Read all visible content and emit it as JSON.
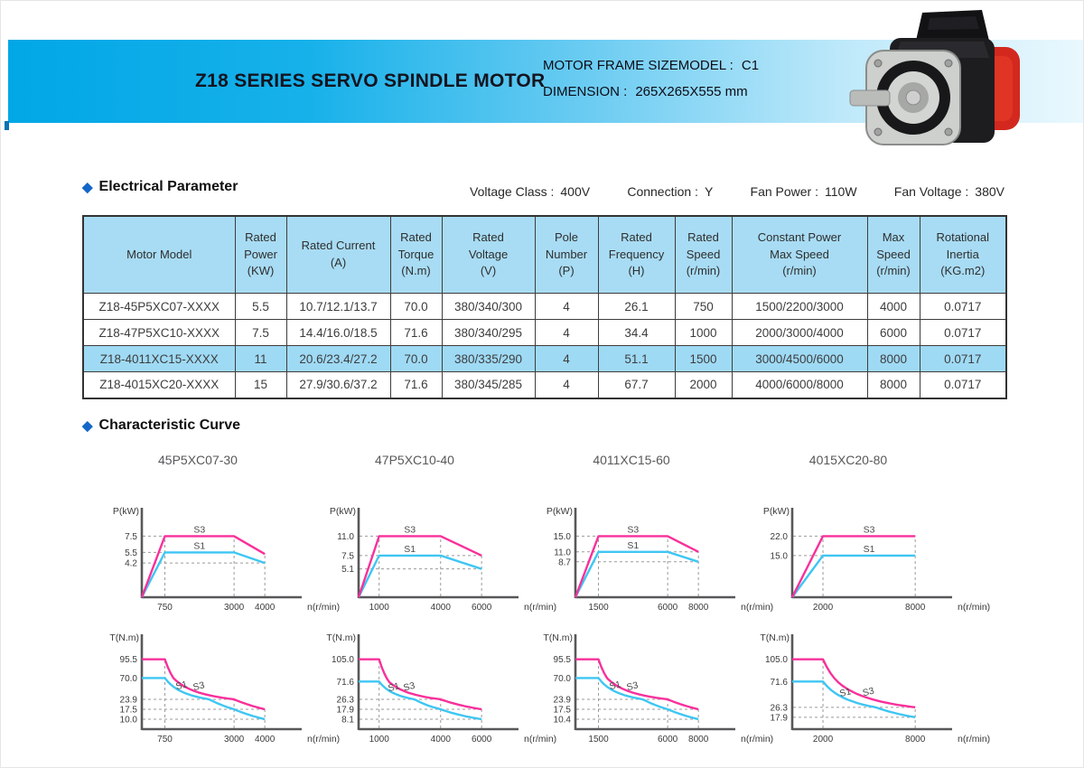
{
  "header": {
    "title": "Z18 SERIES SERVO SPINDLE MOTOR",
    "frame_label": "MOTOR FRAME SIZEMODEL :",
    "frame_value": "C1",
    "dimension_label": "DIMENSION :",
    "dimension_value": "265X265X555 mm",
    "motor_image": "servo-spindle-motor-photo"
  },
  "electrical": {
    "section_title": "Electrical Parameter",
    "meta": [
      {
        "label": "Voltage Class :",
        "value": "400V"
      },
      {
        "label": "Connection :",
        "value": "Y"
      },
      {
        "label": "Fan Power :",
        "value": "110W"
      },
      {
        "label": "Fan Voltage :",
        "value": "380V"
      }
    ],
    "table": {
      "headers": [
        "Motor Model",
        "Rated\nPower\n(KW)",
        "Rated  Current\n(A)",
        "Rated\nTorque\n(N.m)",
        "Rated\nVoltage\n(V)",
        "Pole\nNumber\n(P)",
        "Rated\nFrequency\n(H)",
        "Rated\nSpeed\n(r/min)",
        "Constant Power\nMax Speed\n(r/min)",
        "Max\nSpeed\n(r/min)",
        "Rotational\nInertia\n(KG.m2)"
      ],
      "rows": [
        [
          "Z18-45P5XC07-XXXX",
          "5.5",
          "10.7/12.1/13.7",
          "70.0",
          "380/340/300",
          "4",
          "26.1",
          "750",
          "1500/2200/3000",
          "4000",
          "0.0717"
        ],
        [
          "Z18-47P5XC10-XXXX",
          "7.5",
          "14.4/16.0/18.5",
          "71.6",
          "380/340/295",
          "4",
          "34.4",
          "1000",
          "2000/3000/4000",
          "6000",
          "0.0717"
        ],
        [
          "Z18-4011XC15-XXXX",
          "11",
          "20.6/23.4/27.2",
          "70.0",
          "380/335/290",
          "4",
          "51.1",
          "1500",
          "3000/4500/6000",
          "8000",
          "0.0717"
        ],
        [
          "Z18-4015XC20-XXXX",
          "15",
          "27.9/30.6/37.2",
          "71.6",
          "380/345/285",
          "4",
          "67.7",
          "2000",
          "4000/6000/8000",
          "8000",
          "0.0717"
        ]
      ],
      "highlighted_row": 2
    }
  },
  "curves_section": {
    "section_title": "Characteristic Curve",
    "column_titles": [
      "45P5XC07-30",
      "47P5XC10-40",
      "4011XC15-60",
      "4015XC20-80"
    ],
    "colors": {
      "s3": "#f8309b",
      "s1": "#3ec6f3"
    }
  },
  "chart_data": [
    {
      "type": "line",
      "group": "power",
      "column": 0,
      "title": "45P5XC07-30",
      "ylabel": "P(kW)",
      "xlabel": "n(r/min)",
      "x_ticks": [
        "750",
        "3000",
        "4000"
      ],
      "y_ticks": [
        "7.5",
        "5.5",
        "4.2"
      ],
      "series": [
        {
          "name": "S3",
          "color": "#f8309b",
          "shape": "linear",
          "points": [
            [
              0,
              0
            ],
            [
              750,
              7.5
            ],
            [
              3000,
              7.5
            ],
            [
              4000,
              5.3
            ]
          ]
        },
        {
          "name": "S1",
          "color": "#3ec6f3",
          "shape": "linear",
          "points": [
            [
              0,
              0
            ],
            [
              750,
              5.5
            ],
            [
              3000,
              5.5
            ],
            [
              4000,
              4.2
            ]
          ]
        }
      ]
    },
    {
      "type": "line",
      "group": "power",
      "column": 1,
      "title": "47P5XC10-40",
      "ylabel": "P(kW)",
      "xlabel": "n(r/min)",
      "x_ticks": [
        "1000",
        "4000",
        "6000"
      ],
      "y_ticks": [
        "11.0",
        "7.5",
        "5.1"
      ],
      "series": [
        {
          "name": "S3",
          "color": "#f8309b",
          "shape": "linear",
          "points": [
            [
              0,
              0
            ],
            [
              1000,
              11.0
            ],
            [
              4000,
              11.0
            ],
            [
              6000,
              7.5
            ]
          ]
        },
        {
          "name": "S1",
          "color": "#3ec6f3",
          "shape": "linear",
          "points": [
            [
              0,
              0
            ],
            [
              1000,
              7.5
            ],
            [
              4000,
              7.5
            ],
            [
              6000,
              5.1
            ]
          ]
        }
      ]
    },
    {
      "type": "line",
      "group": "power",
      "column": 2,
      "title": "4011XC15-60",
      "ylabel": "P(kW)",
      "xlabel": "n(r/min)",
      "x_ticks": [
        "1500",
        "6000",
        "8000"
      ],
      "y_ticks": [
        "15.0",
        "11.0",
        "8.7"
      ],
      "series": [
        {
          "name": "S3",
          "color": "#f8309b",
          "shape": "linear",
          "points": [
            [
              0,
              0
            ],
            [
              1500,
              15.0
            ],
            [
              6000,
              15.0
            ],
            [
              8000,
              11.0
            ]
          ]
        },
        {
          "name": "S1",
          "color": "#3ec6f3",
          "shape": "linear",
          "points": [
            [
              0,
              0
            ],
            [
              1500,
              11.0
            ],
            [
              6000,
              11.0
            ],
            [
              8000,
              8.7
            ]
          ]
        }
      ]
    },
    {
      "type": "line",
      "group": "power",
      "column": 3,
      "title": "4015XC20-80",
      "ylabel": "P(kW)",
      "xlabel": "n(r/min)",
      "x_ticks": [
        "2000",
        "8000"
      ],
      "y_ticks": [
        "22.0",
        "15.0"
      ],
      "series": [
        {
          "name": "S3",
          "color": "#f8309b",
          "shape": "linear",
          "points": [
            [
              0,
              0
            ],
            [
              2000,
              22.0
            ],
            [
              8000,
              22.0
            ]
          ]
        },
        {
          "name": "S1",
          "color": "#3ec6f3",
          "shape": "linear",
          "points": [
            [
              0,
              0
            ],
            [
              2000,
              15.0
            ],
            [
              8000,
              15.0
            ]
          ]
        }
      ]
    },
    {
      "type": "line",
      "group": "torque",
      "column": 0,
      "title": "45P5XC07-30",
      "ylabel": "T(N.m)",
      "xlabel": "n(r/min)",
      "x_ticks": [
        "750",
        "3000",
        "4000"
      ],
      "y_ticks": [
        "95.5",
        "70.0",
        "23.9",
        "17.5",
        "10.0"
      ],
      "series": [
        {
          "name": "S3",
          "color": "#f8309b",
          "shape": "flat-hyperbolic",
          "points": [
            [
              0,
              95.5
            ],
            [
              750,
              95.5
            ],
            [
              3000,
              23.9
            ],
            [
              4000,
              17.5
            ]
          ]
        },
        {
          "name": "S1",
          "color": "#3ec6f3",
          "shape": "flat-hyperbolic",
          "points": [
            [
              0,
              70.0
            ],
            [
              750,
              70.0
            ],
            [
              3000,
              17.5
            ],
            [
              4000,
              10.0
            ]
          ]
        }
      ]
    },
    {
      "type": "line",
      "group": "torque",
      "column": 1,
      "title": "47P5XC10-40",
      "ylabel": "T(N.m)",
      "xlabel": "n(r/min)",
      "x_ticks": [
        "1000",
        "4000",
        "6000"
      ],
      "y_ticks": [
        "105.0",
        "71.6",
        "26.3",
        "17.9",
        "8.1"
      ],
      "series": [
        {
          "name": "S3",
          "color": "#f8309b",
          "shape": "flat-hyperbolic",
          "points": [
            [
              0,
              105.0
            ],
            [
              1000,
              105.0
            ],
            [
              4000,
              26.3
            ],
            [
              6000,
              17.9
            ]
          ]
        },
        {
          "name": "S1",
          "color": "#3ec6f3",
          "shape": "flat-hyperbolic",
          "points": [
            [
              0,
              71.6
            ],
            [
              1000,
              71.6
            ],
            [
              4000,
              17.9
            ],
            [
              6000,
              8.1
            ]
          ]
        }
      ]
    },
    {
      "type": "line",
      "group": "torque",
      "column": 2,
      "title": "4011XC15-60",
      "ylabel": "T(N.m)",
      "xlabel": "n(r/min)",
      "x_ticks": [
        "1500",
        "6000",
        "8000"
      ],
      "y_ticks": [
        "95.5",
        "70.0",
        "23.9",
        "17.5",
        "10.4"
      ],
      "series": [
        {
          "name": "S3",
          "color": "#f8309b",
          "shape": "flat-hyperbolic",
          "points": [
            [
              0,
              95.5
            ],
            [
              1500,
              95.5
            ],
            [
              6000,
              23.9
            ],
            [
              8000,
              17.5
            ]
          ]
        },
        {
          "name": "S1",
          "color": "#3ec6f3",
          "shape": "flat-hyperbolic",
          "points": [
            [
              0,
              70.0
            ],
            [
              1500,
              70.0
            ],
            [
              6000,
              17.5
            ],
            [
              8000,
              10.4
            ]
          ]
        }
      ]
    },
    {
      "type": "line",
      "group": "torque",
      "column": 3,
      "title": "4015XC20-80",
      "ylabel": "T(N.m)",
      "xlabel": "n(r/min)",
      "x_ticks": [
        "2000",
        "8000"
      ],
      "y_ticks": [
        "105.0",
        "71.6",
        "26.3",
        "17.9"
      ],
      "series": [
        {
          "name": "S3",
          "color": "#f8309b",
          "shape": "flat-hyperbolic",
          "points": [
            [
              0,
              105.0
            ],
            [
              2000,
              105.0
            ],
            [
              8000,
              26.3
            ]
          ]
        },
        {
          "name": "S1",
          "color": "#3ec6f3",
          "shape": "flat-hyperbolic",
          "points": [
            [
              0,
              71.6
            ],
            [
              2000,
              71.6
            ],
            [
              8000,
              17.9
            ]
          ]
        }
      ]
    }
  ]
}
